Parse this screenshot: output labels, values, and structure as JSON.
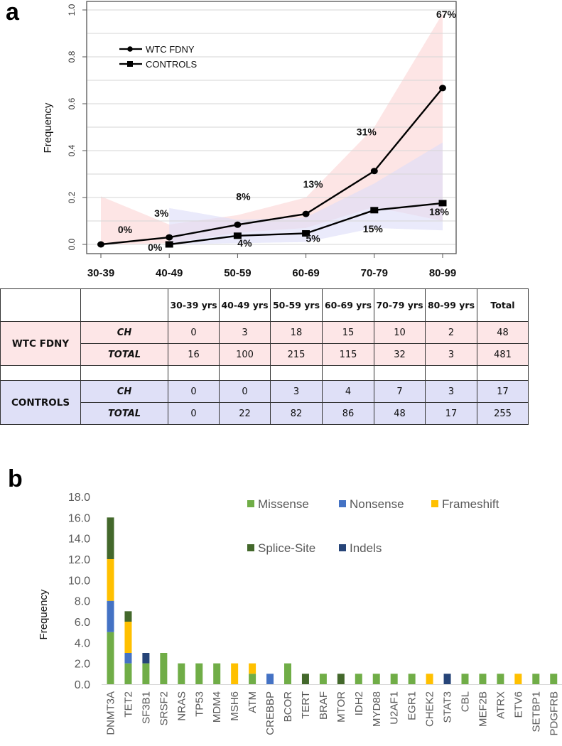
{
  "panel_a_label": "a",
  "panel_b_label": "b",
  "chart_data": [
    {
      "type": "line",
      "title": "",
      "xlabel": "",
      "ylabel": "Frequency",
      "categories": [
        "30-39",
        "40-49",
        "50-59",
        "60-69",
        "70-79",
        "80-99"
      ],
      "ylim": [
        0,
        1.0
      ],
      "yticks": [
        "0.0",
        "0.2",
        "0.4",
        "0.6",
        "0.8",
        "1.0"
      ],
      "ytick_values": [
        0,
        0.2,
        0.4,
        0.6,
        0.8,
        1.0
      ],
      "grid": true,
      "legend_position": "top-left",
      "series": [
        {
          "name": "WTC FDNY",
          "marker": "circle",
          "color": "#000000",
          "band_color": "#fde0e1",
          "x_index": [
            0,
            1,
            2,
            3,
            4,
            5
          ],
          "values": [
            0.0,
            0.03,
            0.084,
            0.13,
            0.313,
            0.667
          ],
          "labels": [
            "0%",
            "3%",
            "8%",
            "13%",
            "31%",
            "67%"
          ],
          "ci_lower": [
            0.0,
            0.005,
            0.05,
            0.07,
            0.16,
            0.1
          ],
          "ci_upper": [
            0.205,
            0.085,
            0.125,
            0.2,
            0.5,
            0.985
          ]
        },
        {
          "name": "CONTROLS",
          "marker": "square",
          "color": "#000000",
          "band_color": "#dcdcf8",
          "x_index": [
            1,
            2,
            3,
            4,
            5
          ],
          "values": [
            0.0,
            0.037,
            0.047,
            0.146,
            0.176
          ],
          "labels": [
            "0%",
            "4%",
            "5%",
            "15%",
            "18%"
          ],
          "ci_lower": [
            0.0,
            0.005,
            0.01,
            0.07,
            0.06
          ],
          "ci_upper": [
            0.155,
            0.105,
            0.115,
            0.26,
            0.435
          ]
        }
      ]
    },
    {
      "type": "bar",
      "stacked": true,
      "title": "",
      "xlabel": "",
      "ylabel": "Frequency",
      "ylim": [
        0,
        18
      ],
      "yticks": [
        "0.0",
        "2.0",
        "4.0",
        "6.0",
        "8.0",
        "10.0",
        "12.0",
        "14.0",
        "16.0",
        "18.0"
      ],
      "ytick_values": [
        0,
        2,
        4,
        6,
        8,
        10,
        12,
        14,
        16,
        18
      ],
      "grid": false,
      "legend_position": "top-right",
      "categories": [
        "DNMT3A",
        "TET2",
        "SF3B1",
        "SRSF2",
        "NRAS",
        "TP53",
        "MDM4",
        "MSH6",
        "ATM",
        "CREBBP",
        "BCOR",
        "TERT",
        "BRAF",
        "MTOR",
        "IDH2",
        "MYD88",
        "U2AF1",
        "EGR1",
        "CHEK2",
        "STAT3",
        "CBL",
        "MEF2B",
        "ATRX",
        "ETV6",
        "SETBP1",
        "PDGFRB"
      ],
      "series": [
        {
          "name": "Missense",
          "color": "#70ad47",
          "values": [
            5,
            2,
            2,
            3,
            2,
            2,
            2,
            0,
            1,
            0,
            2,
            0,
            1,
            0,
            1,
            1,
            1,
            1,
            0,
            0,
            1,
            1,
            1,
            0,
            1,
            1
          ]
        },
        {
          "name": "Nonsense",
          "color": "#4472c4",
          "values": [
            3,
            1,
            0,
            0,
            0,
            0,
            0,
            0,
            0,
            1,
            0,
            0,
            0,
            0,
            0,
            0,
            0,
            0,
            0,
            0,
            0,
            0,
            0,
            0,
            0,
            0
          ]
        },
        {
          "name": "Frameshift",
          "color": "#ffc000",
          "values": [
            4,
            3,
            0,
            0,
            0,
            0,
            0,
            2,
            1,
            0,
            0,
            0,
            0,
            0,
            0,
            0,
            0,
            0,
            1,
            0,
            0,
            0,
            0,
            1,
            0,
            0
          ]
        },
        {
          "name": "Splice-Site",
          "color": "#43682b",
          "values": [
            4,
            1,
            0,
            0,
            0,
            0,
            0,
            0,
            0,
            0,
            0,
            1,
            0,
            1,
            0,
            0,
            0,
            0,
            0,
            0,
            0,
            0,
            0,
            0,
            0,
            0
          ]
        },
        {
          "name": "Indels",
          "color": "#264478",
          "values": [
            0,
            0,
            1,
            0,
            0,
            0,
            0,
            0,
            0,
            0,
            0,
            0,
            0,
            0,
            0,
            0,
            0,
            0,
            0,
            1,
            0,
            0,
            0,
            0,
            0,
            0
          ]
        }
      ]
    }
  ],
  "table": {
    "headers": [
      "",
      "",
      "30-39 yrs",
      "40-49 yrs",
      "50-59 yrs",
      "60-69 yrs",
      "70-79 yrs",
      "80-99 yrs",
      "Total"
    ],
    "groups": [
      {
        "name": "WTC FDNY",
        "color": "#fde6e7",
        "rows": [
          {
            "label": "CH",
            "values": [
              "0",
              "3",
              "18",
              "15",
              "10",
              "2",
              "48"
            ]
          },
          {
            "label": "TOTAL",
            "values": [
              "16",
              "100",
              "215",
              "115",
              "32",
              "3",
              "481"
            ]
          }
        ]
      },
      {
        "name": "CONTROLS",
        "color": "#dfe0f7",
        "rows": [
          {
            "label": "CH",
            "values": [
              "0",
              "0",
              "3",
              "4",
              "7",
              "3",
              "17"
            ]
          },
          {
            "label": "TOTAL",
            "values": [
              "0",
              "22",
              "82",
              "86",
              "48",
              "17",
              "255"
            ]
          }
        ]
      }
    ]
  }
}
